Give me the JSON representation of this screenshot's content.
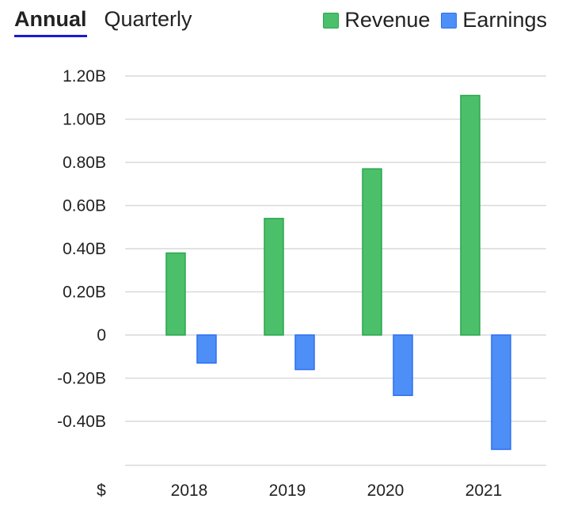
{
  "tabs": {
    "annual": "Annual",
    "quarterly": "Quarterly",
    "active": "annual"
  },
  "legend": {
    "revenue": "Revenue",
    "earnings": "Earnings"
  },
  "colors": {
    "revenue_fill": "#4cbf6b",
    "revenue_stroke": "#2aa64e",
    "earnings_fill": "#4d8ff7",
    "earnings_stroke": "#2f6ff2",
    "grid": "#d9d9d9",
    "tab_underline": "#1a1ad6"
  },
  "chart_data": {
    "type": "bar",
    "categories": [
      "2018",
      "2019",
      "2020",
      "2021"
    ],
    "series": [
      {
        "name": "Revenue",
        "values": [
          0.38,
          0.54,
          0.77,
          1.11
        ]
      },
      {
        "name": "Earnings",
        "values": [
          -0.13,
          -0.16,
          -0.28,
          -0.53
        ]
      }
    ],
    "yticks": [
      1.2,
      1.0,
      0.8,
      0.6,
      0.4,
      0.2,
      0,
      -0.2,
      -0.4
    ],
    "ytick_labels": [
      "1.20B",
      "1.00B",
      "0.80B",
      "0.60B",
      "0.40B",
      "0.20B",
      "0",
      "-0.20B",
      "-0.40B"
    ],
    "ylim": [
      -0.6,
      1.2
    ],
    "unit_label": "$",
    "ylabel": "",
    "xlabel": "",
    "legend_position": "top-right"
  }
}
